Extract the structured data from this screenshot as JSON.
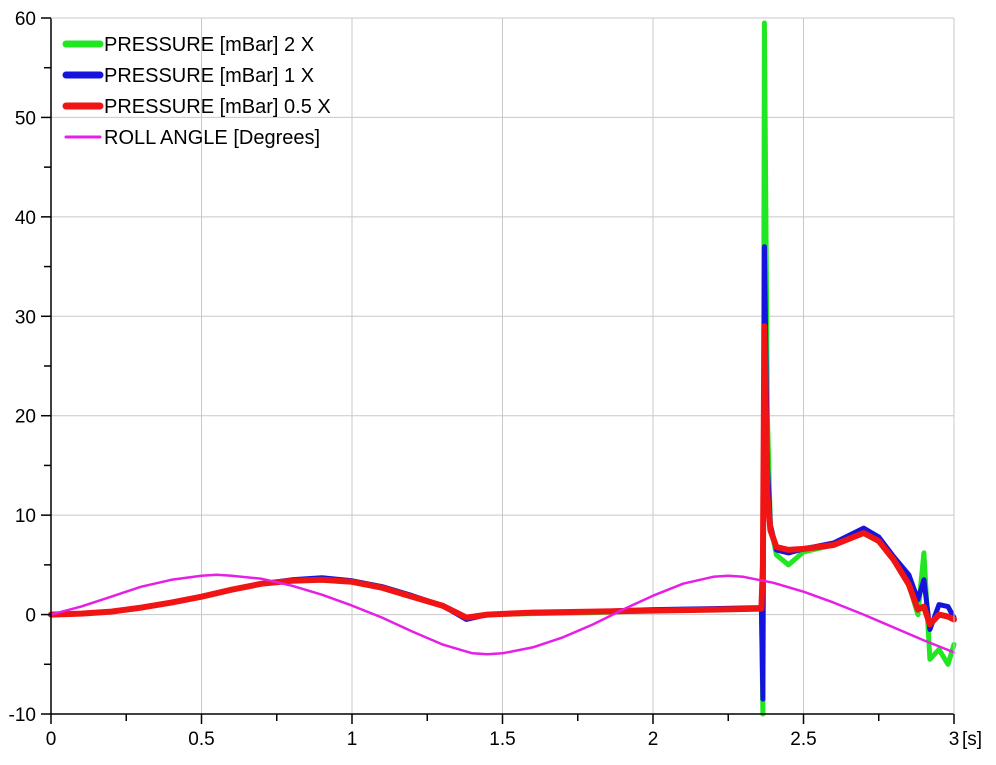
{
  "chart_data": {
    "type": "line",
    "title": "",
    "xlabel": "",
    "ylabel": "",
    "x_unit": "[s]",
    "xlim": [
      0,
      3
    ],
    "ylim": [
      -10,
      60
    ],
    "x_ticks": [
      0,
      0.5,
      1,
      1.5,
      2,
      2.5,
      3
    ],
    "x_tick_labels": [
      "0",
      "0.5",
      "1",
      "1.5",
      "2",
      "2.5",
      "3"
    ],
    "y_ticks": [
      -10,
      0,
      10,
      20,
      30,
      40,
      50,
      60
    ],
    "y_tick_labels": [
      "-10",
      "0",
      "10",
      "20",
      "30",
      "40",
      "50",
      "60"
    ],
    "grid": true,
    "legend_position": "top-left",
    "series": [
      {
        "name": "PRESSURE [mBar] 2 X",
        "color": "#22e622",
        "points": [
          [
            0,
            0
          ],
          [
            0.1,
            0.1
          ],
          [
            0.2,
            0.3
          ],
          [
            0.3,
            0.7
          ],
          [
            0.4,
            1.2
          ],
          [
            0.5,
            1.8
          ],
          [
            0.6,
            2.5
          ],
          [
            0.7,
            3.1
          ],
          [
            0.8,
            3.4
          ],
          [
            0.9,
            3.6
          ],
          [
            1.0,
            3.4
          ],
          [
            1.1,
            2.8
          ],
          [
            1.2,
            1.9
          ],
          [
            1.3,
            0.9
          ],
          [
            1.38,
            -0.4
          ],
          [
            1.45,
            0
          ],
          [
            1.6,
            0.1
          ],
          [
            1.8,
            0.2
          ],
          [
            2.0,
            0.4
          ],
          [
            2.2,
            0.5
          ],
          [
            2.36,
            0.6
          ],
          [
            2.365,
            -10
          ],
          [
            2.37,
            59.5
          ],
          [
            2.375,
            40
          ],
          [
            2.38,
            20
          ],
          [
            2.39,
            9
          ],
          [
            2.41,
            6
          ],
          [
            2.45,
            5
          ],
          [
            2.5,
            6.3
          ],
          [
            2.6,
            7
          ],
          [
            2.7,
            8.3
          ],
          [
            2.75,
            7.5
          ],
          [
            2.8,
            5.5
          ],
          [
            2.85,
            3
          ],
          [
            2.88,
            0
          ],
          [
            2.9,
            6.2
          ],
          [
            2.92,
            -4.5
          ],
          [
            2.95,
            -3.5
          ],
          [
            2.98,
            -5
          ],
          [
            3.0,
            -3
          ]
        ]
      },
      {
        "name": "PRESSURE [mBar] 1 X",
        "color": "#1414dc",
        "points": [
          [
            0,
            0
          ],
          [
            0.1,
            0.1
          ],
          [
            0.2,
            0.3
          ],
          [
            0.3,
            0.7
          ],
          [
            0.4,
            1.2
          ],
          [
            0.5,
            1.8
          ],
          [
            0.6,
            2.5
          ],
          [
            0.7,
            3.1
          ],
          [
            0.8,
            3.5
          ],
          [
            0.9,
            3.7
          ],
          [
            1.0,
            3.4
          ],
          [
            1.1,
            2.8
          ],
          [
            1.2,
            1.9
          ],
          [
            1.3,
            0.9
          ],
          [
            1.38,
            -0.5
          ],
          [
            1.45,
            0
          ],
          [
            1.6,
            0.2
          ],
          [
            1.8,
            0.3
          ],
          [
            2.0,
            0.5
          ],
          [
            2.2,
            0.6
          ],
          [
            2.36,
            0.7
          ],
          [
            2.365,
            -8.5
          ],
          [
            2.37,
            37
          ],
          [
            2.375,
            26
          ],
          [
            2.38,
            15
          ],
          [
            2.39,
            9
          ],
          [
            2.41,
            6.5
          ],
          [
            2.45,
            6.2
          ],
          [
            2.5,
            6.6
          ],
          [
            2.6,
            7.2
          ],
          [
            2.7,
            8.7
          ],
          [
            2.75,
            7.8
          ],
          [
            2.8,
            5.8
          ],
          [
            2.85,
            4
          ],
          [
            2.88,
            1.5
          ],
          [
            2.9,
            3.5
          ],
          [
            2.92,
            -1.5
          ],
          [
            2.95,
            1
          ],
          [
            2.98,
            0.8
          ],
          [
            3.0,
            -0.3
          ]
        ]
      },
      {
        "name": "PRESSURE [mBar] 0.5 X",
        "color": "#f01414",
        "points": [
          [
            0,
            0
          ],
          [
            0.1,
            0.1
          ],
          [
            0.2,
            0.3
          ],
          [
            0.3,
            0.7
          ],
          [
            0.4,
            1.2
          ],
          [
            0.5,
            1.8
          ],
          [
            0.6,
            2.5
          ],
          [
            0.7,
            3.1
          ],
          [
            0.8,
            3.4
          ],
          [
            0.9,
            3.5
          ],
          [
            1.0,
            3.3
          ],
          [
            1.1,
            2.7
          ],
          [
            1.2,
            1.8
          ],
          [
            1.3,
            0.9
          ],
          [
            1.38,
            -0.3
          ],
          [
            1.45,
            0
          ],
          [
            1.6,
            0.2
          ],
          [
            1.8,
            0.3
          ],
          [
            2.0,
            0.4
          ],
          [
            2.2,
            0.5
          ],
          [
            2.36,
            0.6
          ],
          [
            2.365,
            5
          ],
          [
            2.37,
            29
          ],
          [
            2.375,
            20
          ],
          [
            2.38,
            12
          ],
          [
            2.39,
            8.5
          ],
          [
            2.41,
            6.8
          ],
          [
            2.45,
            6.5
          ],
          [
            2.5,
            6.6
          ],
          [
            2.6,
            7
          ],
          [
            2.7,
            8.2
          ],
          [
            2.75,
            7.4
          ],
          [
            2.8,
            5.5
          ],
          [
            2.85,
            3
          ],
          [
            2.88,
            0.5
          ],
          [
            2.9,
            0.8
          ],
          [
            2.92,
            -1
          ],
          [
            2.95,
            0
          ],
          [
            2.98,
            -0.2
          ],
          [
            3.0,
            -0.5
          ]
        ]
      },
      {
        "name": "ROLL ANGLE  [Degrees]",
        "color": "#e61ee6",
        "points": [
          [
            0,
            0
          ],
          [
            0.1,
            0.8
          ],
          [
            0.2,
            1.8
          ],
          [
            0.3,
            2.8
          ],
          [
            0.4,
            3.5
          ],
          [
            0.5,
            3.9
          ],
          [
            0.55,
            4.0
          ],
          [
            0.6,
            3.9
          ],
          [
            0.7,
            3.6
          ],
          [
            0.8,
            2.9
          ],
          [
            0.9,
            2.0
          ],
          [
            1.0,
            0.9
          ],
          [
            1.1,
            -0.3
          ],
          [
            1.2,
            -1.7
          ],
          [
            1.3,
            -3.0
          ],
          [
            1.4,
            -3.9
          ],
          [
            1.45,
            -4.0
          ],
          [
            1.5,
            -3.9
          ],
          [
            1.6,
            -3.3
          ],
          [
            1.7,
            -2.3
          ],
          [
            1.8,
            -1.0
          ],
          [
            1.9,
            0.5
          ],
          [
            2.0,
            1.9
          ],
          [
            2.1,
            3.1
          ],
          [
            2.2,
            3.8
          ],
          [
            2.25,
            3.9
          ],
          [
            2.3,
            3.8
          ],
          [
            2.4,
            3.2
          ],
          [
            2.5,
            2.3
          ],
          [
            2.6,
            1.2
          ],
          [
            2.7,
            0
          ],
          [
            2.8,
            -1.3
          ],
          [
            2.9,
            -2.6
          ],
          [
            3.0,
            -3.8
          ]
        ]
      }
    ]
  }
}
